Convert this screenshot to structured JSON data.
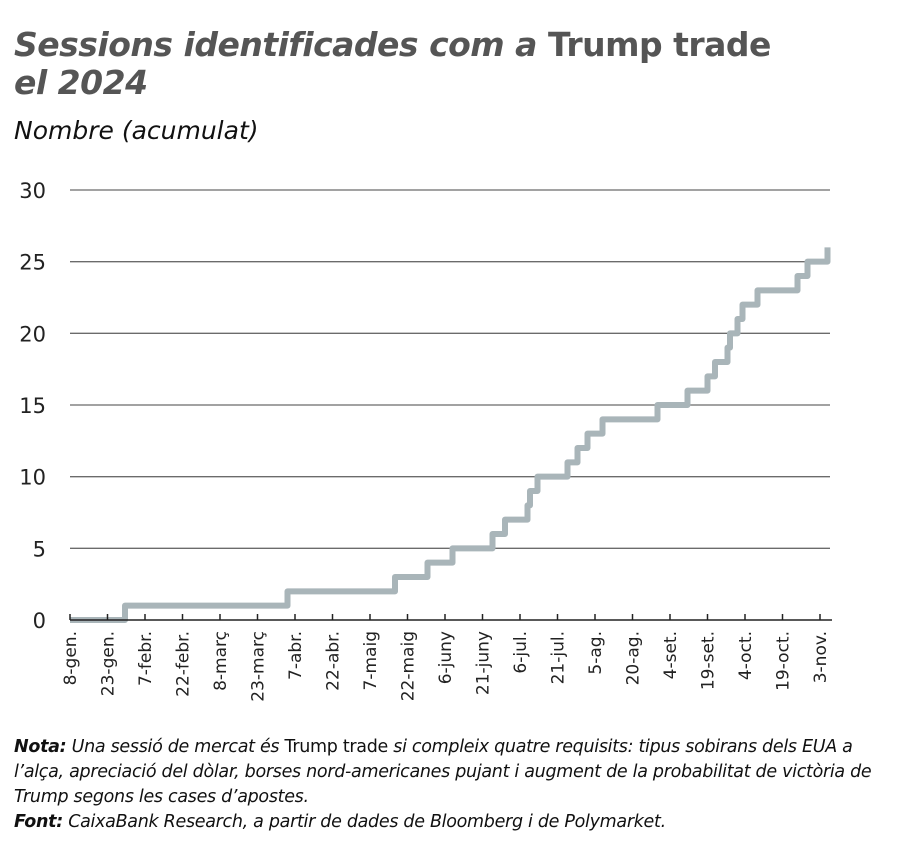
{
  "title": {
    "part1": "Sessions identificades com a ",
    "part2": "Trump trade",
    "part3": "el 2024"
  },
  "subtitle": "Nombre (acumulat)",
  "chart_data": {
    "type": "line",
    "step": true,
    "color": "#a9b5b9",
    "grid": true,
    "ylim": [
      0,
      30
    ],
    "yticks": [
      0,
      5,
      10,
      15,
      20,
      25,
      30
    ],
    "xlim": [
      "2024-01-08",
      "2024-11-06"
    ],
    "xtick_labels": [
      "8-gen.",
      "23-gen.",
      "7-febr.",
      "22-febr.",
      "8-març",
      "23-març",
      "7-abr.",
      "22-abr.",
      "7-maig",
      "22-maig",
      "6-juny",
      "21-juny",
      "6-jul.",
      "21-jul.",
      "5-ag.",
      "20-ag.",
      "4-set.",
      "19-set.",
      "4-oct.",
      "19-oct.",
      "3-nov."
    ],
    "points": [
      [
        "2024-01-08",
        0
      ],
      [
        "2024-01-30",
        1
      ],
      [
        "2024-04-04",
        2
      ],
      [
        "2024-05-17",
        3
      ],
      [
        "2024-05-30",
        4
      ],
      [
        "2024-06-09",
        5
      ],
      [
        "2024-06-25",
        6
      ],
      [
        "2024-06-30",
        7
      ],
      [
        "2024-07-09",
        8
      ],
      [
        "2024-07-10",
        9
      ],
      [
        "2024-07-13",
        10
      ],
      [
        "2024-07-25",
        11
      ],
      [
        "2024-07-29",
        12
      ],
      [
        "2024-08-02",
        13
      ],
      [
        "2024-08-08",
        14
      ],
      [
        "2024-08-30",
        15
      ],
      [
        "2024-09-11",
        16
      ],
      [
        "2024-09-19",
        17
      ],
      [
        "2024-09-22",
        18
      ],
      [
        "2024-09-27",
        19
      ],
      [
        "2024-09-28",
        20
      ],
      [
        "2024-10-01",
        21
      ],
      [
        "2024-10-03",
        22
      ],
      [
        "2024-10-09",
        23
      ],
      [
        "2024-10-25",
        24
      ],
      [
        "2024-10-29",
        25
      ],
      [
        "2024-11-06",
        26
      ]
    ]
  },
  "note": {
    "label": "Nota:",
    "text1": " Una sessió de mercat és ",
    "text2": "Trump trade",
    "text3": " si compleix quatre requisits: tipus sobirans dels EUA a l’alça, apreciació del dòlar, borses nord-americanes pujant i augment de la probabilitat de victòria de Trump segons les cases d’apostes."
  },
  "source": {
    "label": "Font:",
    "text": " CaixaBank Research, a partir de dades de Bloomberg i de Polymarket."
  }
}
